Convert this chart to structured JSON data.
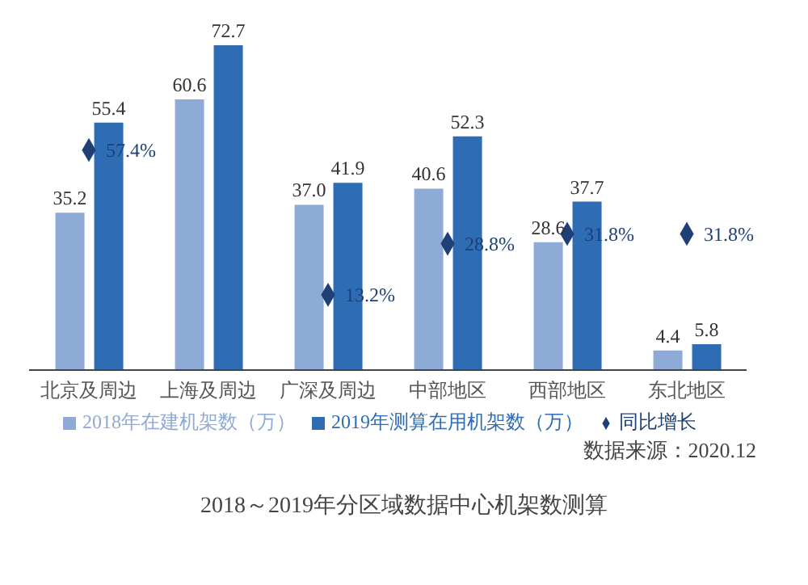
{
  "chart_data": {
    "type": "bar",
    "title": "2018～2019年分区域数据中心机架数测算",
    "annotations": [
      "数据来源：2020.12"
    ],
    "categories": [
      "北京及周边",
      "上海及周边",
      "广深及周边",
      "中部地区",
      "西部地区",
      "东北地区"
    ],
    "series": [
      {
        "name": "2018年在建机架数（万）",
        "color": "#8eaad6",
        "values": [
          35.2,
          60.6,
          37.0,
          40.6,
          28.6,
          4.4
        ],
        "value_labels": [
          "35.2",
          "60.6",
          "37.0",
          "40.6",
          "28.6",
          "4.4"
        ]
      },
      {
        "name": "2019年测算在用机架数（万）",
        "color": "#2e6db4",
        "values": [
          55.4,
          72.7,
          41.9,
          52.3,
          37.7,
          5.8
        ],
        "value_labels": [
          "55.4",
          "72.7",
          "41.9",
          "52.3",
          "37.7",
          "5.8"
        ]
      },
      {
        "name": "同比增长",
        "type": "scatter",
        "axis": "y2",
        "marker": "diamond",
        "color": "#1f3f77",
        "values": [
          57.4,
          null,
          13.2,
          28.8,
          31.8,
          31.8
        ],
        "value_labels": [
          "57.4%",
          null,
          "13.2%",
          "28.8%",
          "31.8%",
          "31.8%"
        ]
      }
    ],
    "tick_labels": "x",
    "legend": "bottom"
  }
}
